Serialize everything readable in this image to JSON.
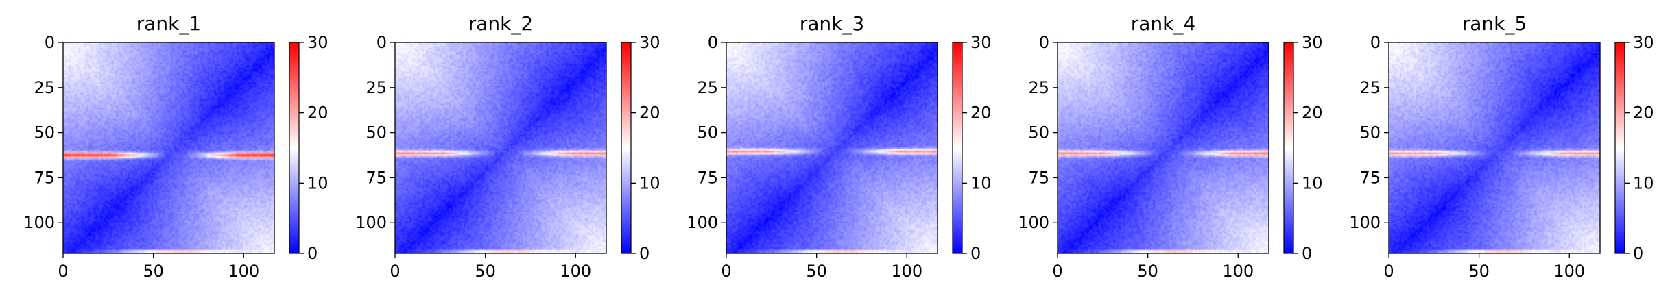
{
  "chart_data": [
    {
      "type": "heatmap",
      "title": "rank_1",
      "xlim": [
        0,
        117
      ],
      "ylim": [
        117,
        0
      ],
      "xticks": [
        0,
        50,
        100
      ],
      "yticks": [
        0,
        25,
        50,
        75,
        100
      ],
      "colorbar": {
        "min": 0,
        "max": 30,
        "ticks": [
          0,
          10,
          20,
          30
        ],
        "colormap": "bwr"
      },
      "features": {
        "anti_diagonal_min": true,
        "band_row": 62,
        "band_strength": 1.0,
        "bottom_row_warm": true
      }
    },
    {
      "type": "heatmap",
      "title": "rank_2",
      "xlim": [
        0,
        117
      ],
      "ylim": [
        117,
        0
      ],
      "xticks": [
        0,
        50,
        100
      ],
      "yticks": [
        0,
        25,
        50,
        75,
        100
      ],
      "colorbar": {
        "min": 0,
        "max": 30,
        "ticks": [
          0,
          10,
          20,
          30
        ],
        "colormap": "bwr"
      },
      "features": {
        "anti_diagonal_min": true,
        "band_row": 61,
        "band_strength": 0.75,
        "bottom_row_warm": true
      }
    },
    {
      "type": "heatmap",
      "title": "rank_3",
      "xlim": [
        0,
        117
      ],
      "ylim": [
        117,
        0
      ],
      "xticks": [
        0,
        50,
        100
      ],
      "yticks": [
        0,
        25,
        50,
        75,
        100
      ],
      "colorbar": {
        "min": 0,
        "max": 30,
        "ticks": [
          0,
          10,
          20,
          30
        ],
        "colormap": "bwr"
      },
      "features": {
        "anti_diagonal_min": true,
        "band_row": 60,
        "band_strength": 0.7,
        "bottom_row_warm": true
      }
    },
    {
      "type": "heatmap",
      "title": "rank_4",
      "xlim": [
        0,
        117
      ],
      "ylim": [
        117,
        0
      ],
      "xticks": [
        0,
        50,
        100
      ],
      "yticks": [
        0,
        25,
        50,
        75,
        100
      ],
      "colorbar": {
        "min": 0,
        "max": 30,
        "ticks": [
          0,
          10,
          20,
          30
        ],
        "colormap": "bwr"
      },
      "features": {
        "anti_diagonal_min": true,
        "band_row": 61,
        "band_strength": 0.75,
        "bottom_row_warm": true
      }
    },
    {
      "type": "heatmap",
      "title": "rank_5",
      "xlim": [
        0,
        117
      ],
      "ylim": [
        117,
        0
      ],
      "xticks": [
        0,
        50,
        100
      ],
      "yticks": [
        0,
        25,
        50,
        75,
        100
      ],
      "colorbar": {
        "min": 0,
        "max": 30,
        "ticks": [
          0,
          10,
          20,
          30
        ],
        "colormap": "bwr"
      },
      "features": {
        "anti_diagonal_min": true,
        "band_row": 61,
        "band_strength": 0.7,
        "bottom_row_warm": true
      }
    }
  ]
}
